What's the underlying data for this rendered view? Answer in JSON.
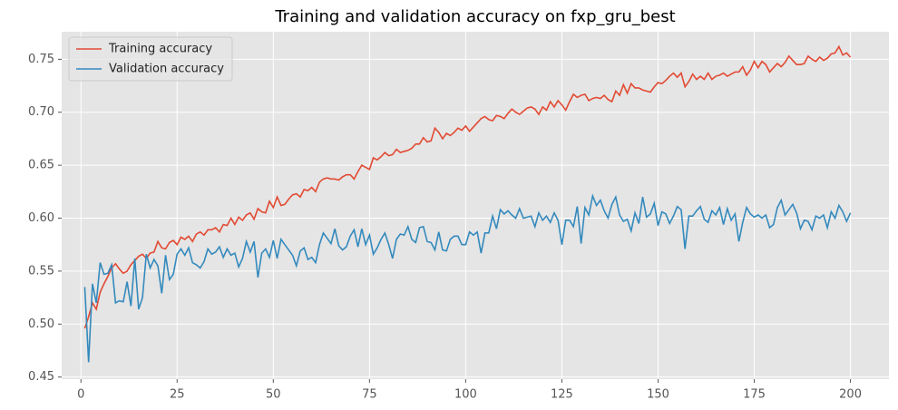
{
  "chart_data": {
    "type": "line",
    "title": "Training and validation accuracy on fxp_gru_best",
    "x": [
      1,
      2,
      3,
      4,
      5,
      6,
      7,
      8,
      9,
      10,
      11,
      12,
      13,
      14,
      15,
      16,
      17,
      18,
      19,
      20,
      21,
      22,
      23,
      24,
      25,
      26,
      27,
      28,
      29,
      30,
      31,
      32,
      33,
      34,
      35,
      36,
      37,
      38,
      39,
      40,
      41,
      42,
      43,
      44,
      45,
      46,
      47,
      48,
      49,
      50,
      51,
      52,
      53,
      54,
      55,
      56,
      57,
      58,
      59,
      60,
      61,
      62,
      63,
      64,
      65,
      66,
      67,
      68,
      69,
      70,
      71,
      72,
      73,
      74,
      75,
      76,
      77,
      78,
      79,
      80,
      81,
      82,
      83,
      84,
      85,
      86,
      87,
      88,
      89,
      90,
      91,
      92,
      93,
      94,
      95,
      96,
      97,
      98,
      99,
      100,
      101,
      102,
      103,
      104,
      105,
      106,
      107,
      108,
      109,
      110,
      111,
      112,
      113,
      114,
      115,
      116,
      117,
      118,
      119,
      120,
      121,
      122,
      123,
      124,
      125,
      126,
      127,
      128,
      129,
      130,
      131,
      132,
      133,
      134,
      135,
      136,
      137,
      138,
      139,
      140,
      141,
      142,
      143,
      144,
      145,
      146,
      147,
      148,
      149,
      150,
      151,
      152,
      153,
      154,
      155,
      156,
      157,
      158,
      159,
      160,
      161,
      162,
      163,
      164,
      165,
      166,
      167,
      168,
      169,
      170,
      171,
      172,
      173,
      174,
      175,
      176,
      177,
      178,
      179,
      180,
      181,
      182,
      183,
      184,
      185,
      186,
      187,
      188,
      189,
      190,
      191,
      192,
      193,
      194,
      195,
      196,
      197,
      198,
      199,
      200
    ],
    "series": [
      {
        "name": "Training accuracy",
        "color": "#E24A33",
        "values": [
          0.496,
          0.507,
          0.52,
          0.514,
          0.53,
          0.538,
          0.545,
          0.553,
          0.557,
          0.552,
          0.548,
          0.55,
          0.556,
          0.56,
          0.564,
          0.566,
          0.562,
          0.567,
          0.568,
          0.578,
          0.572,
          0.571,
          0.577,
          0.579,
          0.575,
          0.582,
          0.58,
          0.583,
          0.578,
          0.585,
          0.587,
          0.584,
          0.589,
          0.589,
          0.591,
          0.587,
          0.594,
          0.593,
          0.6,
          0.594,
          0.601,
          0.598,
          0.603,
          0.605,
          0.599,
          0.609,
          0.606,
          0.605,
          0.616,
          0.61,
          0.62,
          0.612,
          0.613,
          0.618,
          0.622,
          0.623,
          0.62,
          0.627,
          0.626,
          0.629,
          0.625,
          0.634,
          0.637,
          0.638,
          0.637,
          0.637,
          0.636,
          0.639,
          0.641,
          0.641,
          0.637,
          0.644,
          0.65,
          0.648,
          0.646,
          0.657,
          0.655,
          0.658,
          0.662,
          0.659,
          0.66,
          0.665,
          0.662,
          0.663,
          0.664,
          0.666,
          0.67,
          0.67,
          0.676,
          0.672,
          0.673,
          0.685,
          0.681,
          0.675,
          0.68,
          0.678,
          0.681,
          0.685,
          0.683,
          0.687,
          0.682,
          0.686,
          0.69,
          0.694,
          0.696,
          0.693,
          0.692,
          0.697,
          0.696,
          0.694,
          0.699,
          0.703,
          0.7,
          0.698,
          0.701,
          0.704,
          0.705,
          0.703,
          0.698,
          0.705,
          0.702,
          0.71,
          0.705,
          0.711,
          0.707,
          0.702,
          0.71,
          0.717,
          0.714,
          0.716,
          0.717,
          0.711,
          0.713,
          0.714,
          0.713,
          0.716,
          0.712,
          0.71,
          0.72,
          0.716,
          0.726,
          0.718,
          0.727,
          0.723,
          0.723,
          0.721,
          0.72,
          0.719,
          0.724,
          0.728,
          0.727,
          0.73,
          0.734,
          0.737,
          0.733,
          0.737,
          0.724,
          0.729,
          0.736,
          0.731,
          0.734,
          0.731,
          0.737,
          0.731,
          0.734,
          0.735,
          0.737,
          0.734,
          0.736,
          0.738,
          0.738,
          0.743,
          0.735,
          0.74,
          0.748,
          0.742,
          0.748,
          0.745,
          0.738,
          0.742,
          0.746,
          0.743,
          0.747,
          0.753,
          0.749,
          0.745,
          0.745,
          0.746,
          0.753,
          0.75,
          0.748,
          0.752,
          0.749,
          0.751,
          0.755,
          0.756,
          0.762,
          0.754,
          0.756,
          0.752
        ]
      },
      {
        "name": "Validation accuracy",
        "color": "#348ABD",
        "values": [
          0.535,
          0.464,
          0.538,
          0.52,
          0.558,
          0.547,
          0.548,
          0.556,
          0.52,
          0.522,
          0.521,
          0.54,
          0.517,
          0.562,
          0.514,
          0.525,
          0.566,
          0.553,
          0.561,
          0.555,
          0.529,
          0.565,
          0.542,
          0.547,
          0.566,
          0.571,
          0.565,
          0.572,
          0.558,
          0.556,
          0.553,
          0.559,
          0.571,
          0.566,
          0.568,
          0.573,
          0.563,
          0.571,
          0.565,
          0.567,
          0.554,
          0.562,
          0.578,
          0.568,
          0.578,
          0.544,
          0.567,
          0.571,
          0.563,
          0.579,
          0.562,
          0.58,
          0.575,
          0.57,
          0.565,
          0.555,
          0.569,
          0.572,
          0.561,
          0.563,
          0.558,
          0.575,
          0.586,
          0.581,
          0.576,
          0.59,
          0.574,
          0.57,
          0.573,
          0.583,
          0.589,
          0.573,
          0.59,
          0.575,
          0.584,
          0.566,
          0.572,
          0.58,
          0.586,
          0.575,
          0.562,
          0.58,
          0.585,
          0.584,
          0.592,
          0.58,
          0.577,
          0.591,
          0.592,
          0.578,
          0.577,
          0.57,
          0.587,
          0.57,
          0.569,
          0.58,
          0.583,
          0.583,
          0.575,
          0.575,
          0.587,
          0.584,
          0.587,
          0.567,
          0.586,
          0.586,
          0.602,
          0.59,
          0.608,
          0.604,
          0.607,
          0.603,
          0.6,
          0.609,
          0.6,
          0.601,
          0.602,
          0.592,
          0.605,
          0.598,
          0.602,
          0.596,
          0.605,
          0.598,
          0.575,
          0.598,
          0.598,
          0.592,
          0.611,
          0.576,
          0.61,
          0.603,
          0.621,
          0.612,
          0.617,
          0.607,
          0.6,
          0.613,
          0.62,
          0.603,
          0.597,
          0.599,
          0.588,
          0.605,
          0.595,
          0.62,
          0.601,
          0.604,
          0.614,
          0.593,
          0.606,
          0.604,
          0.595,
          0.602,
          0.611,
          0.608,
          0.571,
          0.602,
          0.602,
          0.607,
          0.611,
          0.599,
          0.596,
          0.607,
          0.603,
          0.61,
          0.594,
          0.609,
          0.598,
          0.604,
          0.578,
          0.596,
          0.61,
          0.604,
          0.601,
          0.603,
          0.6,
          0.603,
          0.591,
          0.594,
          0.61,
          0.617,
          0.603,
          0.608,
          0.613,
          0.605,
          0.59,
          0.598,
          0.597,
          0.589,
          0.602,
          0.6,
          0.603,
          0.591,
          0.606,
          0.6,
          0.612,
          0.606,
          0.597,
          0.605
        ]
      }
    ],
    "xlim": [
      -5,
      210
    ],
    "ylim": [
      0.448,
      0.776
    ],
    "xticks": [
      0,
      25,
      50,
      75,
      100,
      125,
      150,
      175,
      200
    ],
    "yticks": [
      0.45,
      {
        "value": 0.5,
        "label": "0.50"
      },
      0.55,
      {
        "value": 0.6,
        "label": "0.60"
      },
      0.65,
      {
        "value": 0.7,
        "label": "0.70"
      },
      0.75
    ],
    "grid": true,
    "legend": "upper-left"
  }
}
